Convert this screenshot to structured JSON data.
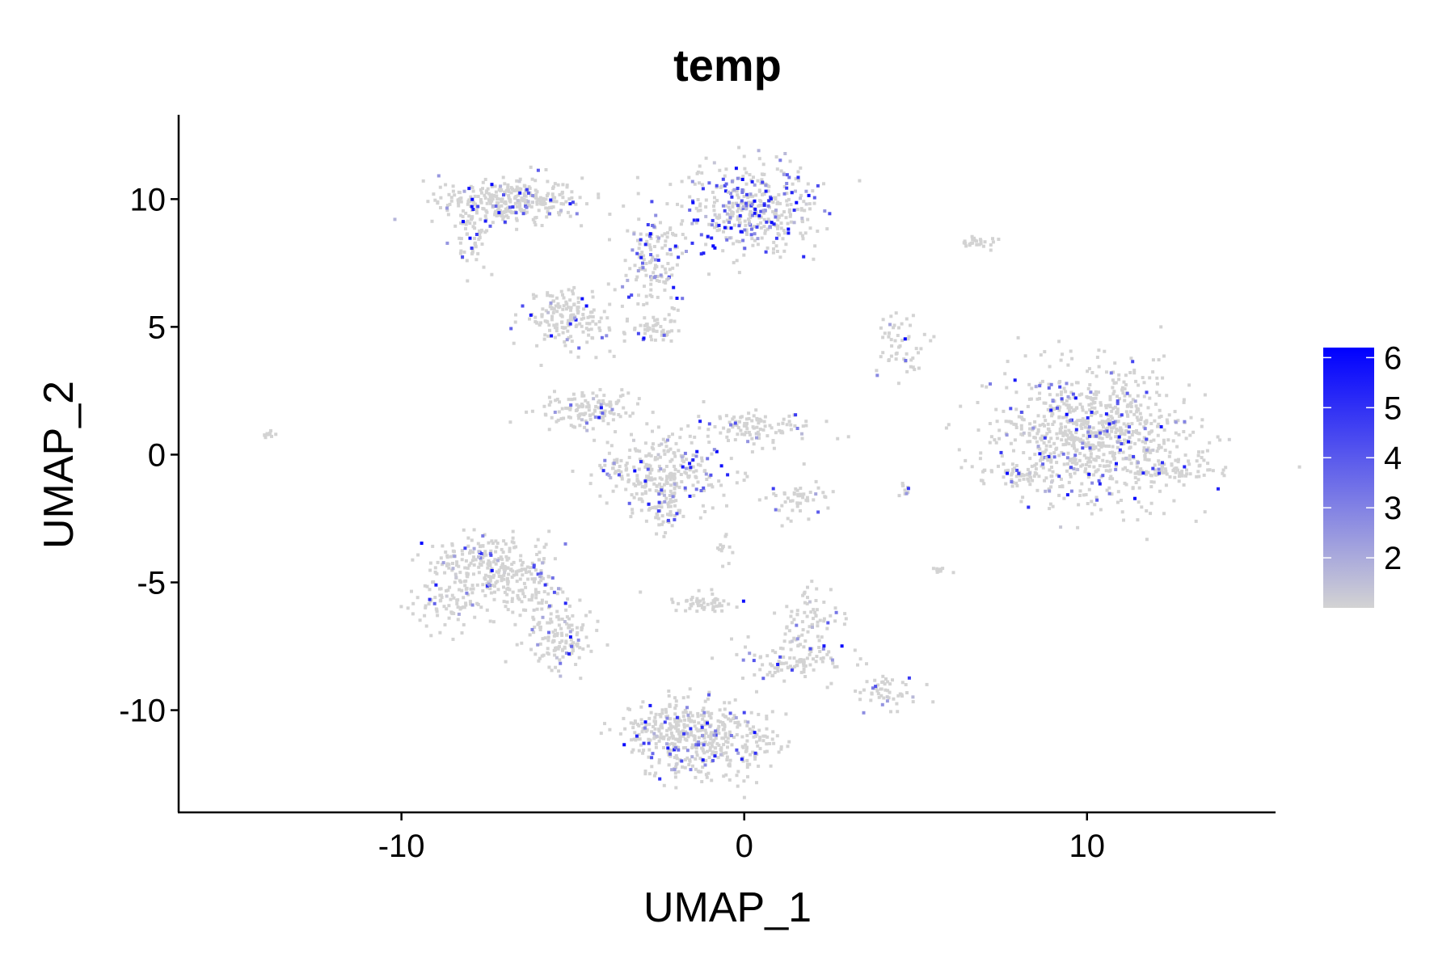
{
  "chart_data": {
    "type": "scatter",
    "title": "temp",
    "xlabel": "UMAP_1",
    "ylabel": "UMAP_2",
    "xlim": [
      -16.5,
      15.5
    ],
    "ylim": [
      -14,
      13.3
    ],
    "xticks": [
      -10,
      0,
      10
    ],
    "yticks": [
      -10,
      -5,
      0,
      5,
      10
    ],
    "grid": false,
    "legend": {
      "placement": "right",
      "type": "colorbar",
      "min": 1,
      "max": 6.2,
      "ticks": [
        2,
        3,
        4,
        5,
        6
      ],
      "low_color": "#d3d3d3",
      "high_color": "#0000ff"
    },
    "clusters": [
      {
        "cx": -6.8,
        "cy": 9.9,
        "sx": 1.0,
        "sy": 0.45,
        "n": 320,
        "hi": 0.12
      },
      {
        "cx": -7.9,
        "cy": 8.9,
        "sx": 0.3,
        "sy": 0.7,
        "n": 70,
        "hi": 0.08
      },
      {
        "cx": 0.2,
        "cy": 9.6,
        "sx": 0.9,
        "sy": 0.9,
        "n": 420,
        "hi": 0.3
      },
      {
        "cx": -2.6,
        "cy": 7.5,
        "sx": 0.4,
        "sy": 1.0,
        "n": 140,
        "hi": 0.25
      },
      {
        "cx": -5.1,
        "cy": 5.3,
        "sx": 0.7,
        "sy": 0.6,
        "n": 170,
        "hi": 0.08
      },
      {
        "cx": -2.8,
        "cy": 4.8,
        "sx": 0.4,
        "sy": 0.3,
        "n": 50,
        "hi": 0.04
      },
      {
        "cx": -4.5,
        "cy": 1.8,
        "sx": 0.7,
        "sy": 0.35,
        "n": 130,
        "hi": 0.08
      },
      {
        "cx": -2.3,
        "cy": -0.7,
        "sx": 1.0,
        "sy": 0.8,
        "n": 300,
        "hi": 0.1
      },
      {
        "cx": 0.4,
        "cy": 1.0,
        "sx": 0.8,
        "sy": 0.3,
        "n": 110,
        "hi": 0.08
      },
      {
        "cx": -2.3,
        "cy": -2.3,
        "sx": 0.3,
        "sy": 0.4,
        "n": 45,
        "hi": 0.1
      },
      {
        "cx": 1.6,
        "cy": -1.8,
        "sx": 0.4,
        "sy": 0.4,
        "n": 50,
        "hi": 0.05
      },
      {
        "cx": 10.2,
        "cy": 0.7,
        "sx": 1.4,
        "sy": 1.3,
        "n": 900,
        "hi": 0.12
      },
      {
        "cx": 12.5,
        "cy": -0.6,
        "sx": 0.6,
        "sy": 0.2,
        "n": 60,
        "hi": 0.05
      },
      {
        "cx": 8.0,
        "cy": -0.8,
        "sx": 0.5,
        "sy": 0.2,
        "n": 40,
        "hi": 0.05
      },
      {
        "cx": 6.8,
        "cy": 8.3,
        "sx": 0.35,
        "sy": 0.15,
        "n": 25,
        "hi": 0.04
      },
      {
        "cx": 4.6,
        "cy": 4.2,
        "sx": 0.35,
        "sy": 0.7,
        "n": 55,
        "hi": 0.08
      },
      {
        "cx": -13.9,
        "cy": 0.8,
        "sx": 0.12,
        "sy": 0.08,
        "n": 10,
        "hi": 0.0
      },
      {
        "cx": -7.5,
        "cy": -4.3,
        "sx": 0.9,
        "sy": 0.6,
        "n": 240,
        "hi": 0.1
      },
      {
        "cx": -8.6,
        "cy": -5.9,
        "sx": 0.6,
        "sy": 0.6,
        "n": 90,
        "hi": 0.08
      },
      {
        "cx": -5.3,
        "cy": -7.2,
        "sx": 0.5,
        "sy": 0.6,
        "n": 130,
        "hi": 0.08
      },
      {
        "cx": -6.2,
        "cy": -5.3,
        "sx": 0.5,
        "sy": 0.7,
        "n": 80,
        "hi": 0.06
      },
      {
        "cx": -1.0,
        "cy": -5.8,
        "sx": 0.6,
        "sy": 0.2,
        "n": 50,
        "hi": 0.04
      },
      {
        "cx": 1.5,
        "cy": -8.0,
        "sx": 0.9,
        "sy": 0.5,
        "n": 120,
        "hi": 0.12
      },
      {
        "cx": 2.0,
        "cy": -6.2,
        "sx": 0.4,
        "sy": 0.5,
        "n": 55,
        "hi": 0.06
      },
      {
        "cx": 4.2,
        "cy": -9.3,
        "sx": 0.45,
        "sy": 0.3,
        "n": 55,
        "hi": 0.07
      },
      {
        "cx": -1.1,
        "cy": -11.1,
        "sx": 1.0,
        "sy": 0.75,
        "n": 420,
        "hi": 0.12
      },
      {
        "cx": -2.6,
        "cy": -10.8,
        "sx": 0.5,
        "sy": 0.5,
        "n": 90,
        "hi": 0.08
      },
      {
        "cx": -0.6,
        "cy": -3.8,
        "sx": 0.1,
        "sy": 0.35,
        "n": 12,
        "hi": 0.0
      },
      {
        "cx": 5.7,
        "cy": -4.5,
        "sx": 0.15,
        "sy": 0.1,
        "n": 10,
        "hi": 0.0
      },
      {
        "cx": 4.7,
        "cy": -1.4,
        "sx": 0.1,
        "sy": 0.15,
        "n": 10,
        "hi": 0.3
      }
    ]
  }
}
